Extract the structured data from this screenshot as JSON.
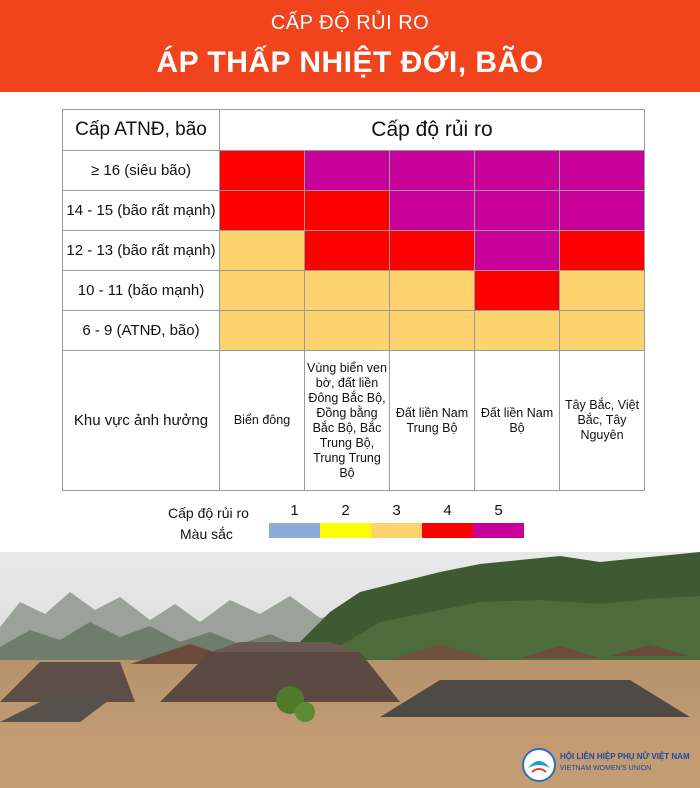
{
  "header": {
    "subtitle": "CẤP ĐỘ RỦI RO",
    "title": "ÁP THẤP NHIỆT ĐỚI, BÃO"
  },
  "table": {
    "col_header_left": "Cấp ATNĐ, bão",
    "col_header_right": "Cấp độ rủi ro",
    "rows": [
      {
        "label": "≥ 16 (siêu bão)",
        "levels": [
          4,
          5,
          5,
          5,
          5
        ]
      },
      {
        "label": "14 - 15 (bão rất mạnh)",
        "levels": [
          4,
          4,
          5,
          5,
          5
        ]
      },
      {
        "label": "12 - 13 (bão rất mạnh)",
        "levels": [
          3,
          4,
          4,
          5,
          4
        ]
      },
      {
        "label": "10 - 11 (bão mạnh)",
        "levels": [
          3,
          3,
          3,
          4,
          3
        ]
      },
      {
        "label": "6 - 9 (ATNĐ, bão)",
        "levels": [
          3,
          3,
          3,
          3,
          3
        ]
      }
    ],
    "area_label": "Khu vực ảnh hưởng",
    "areas": [
      "Biển đông",
      "Vùng biển ven bờ, đất liền Đông Bắc Bộ, Đồng bằng Bắc Bộ, Bắc Trung Bộ, Trung Trung Bộ",
      "Đất liền Nam Trung Bộ",
      "Đất liền Nam Bộ",
      "Tây Bắc, Việt Bắc, Tây Nguyên"
    ]
  },
  "legend": {
    "level_label": "Cấp độ rủi ro",
    "color_label": "Màu sắc",
    "levels": [
      {
        "num": "1",
        "color": "#8fa9d9"
      },
      {
        "num": "2",
        "color": "#ffff00"
      },
      {
        "num": "3",
        "color": "#fdd36e"
      },
      {
        "num": "4",
        "color": "#ff0000"
      },
      {
        "num": "5",
        "color": "#c8019b"
      }
    ]
  },
  "logo": {
    "title": "HỘI LIÊN HIỆP PHỤ NỮ VIỆT NAM",
    "subtitle": "VIETNAM WOMEN'S UNION"
  }
}
